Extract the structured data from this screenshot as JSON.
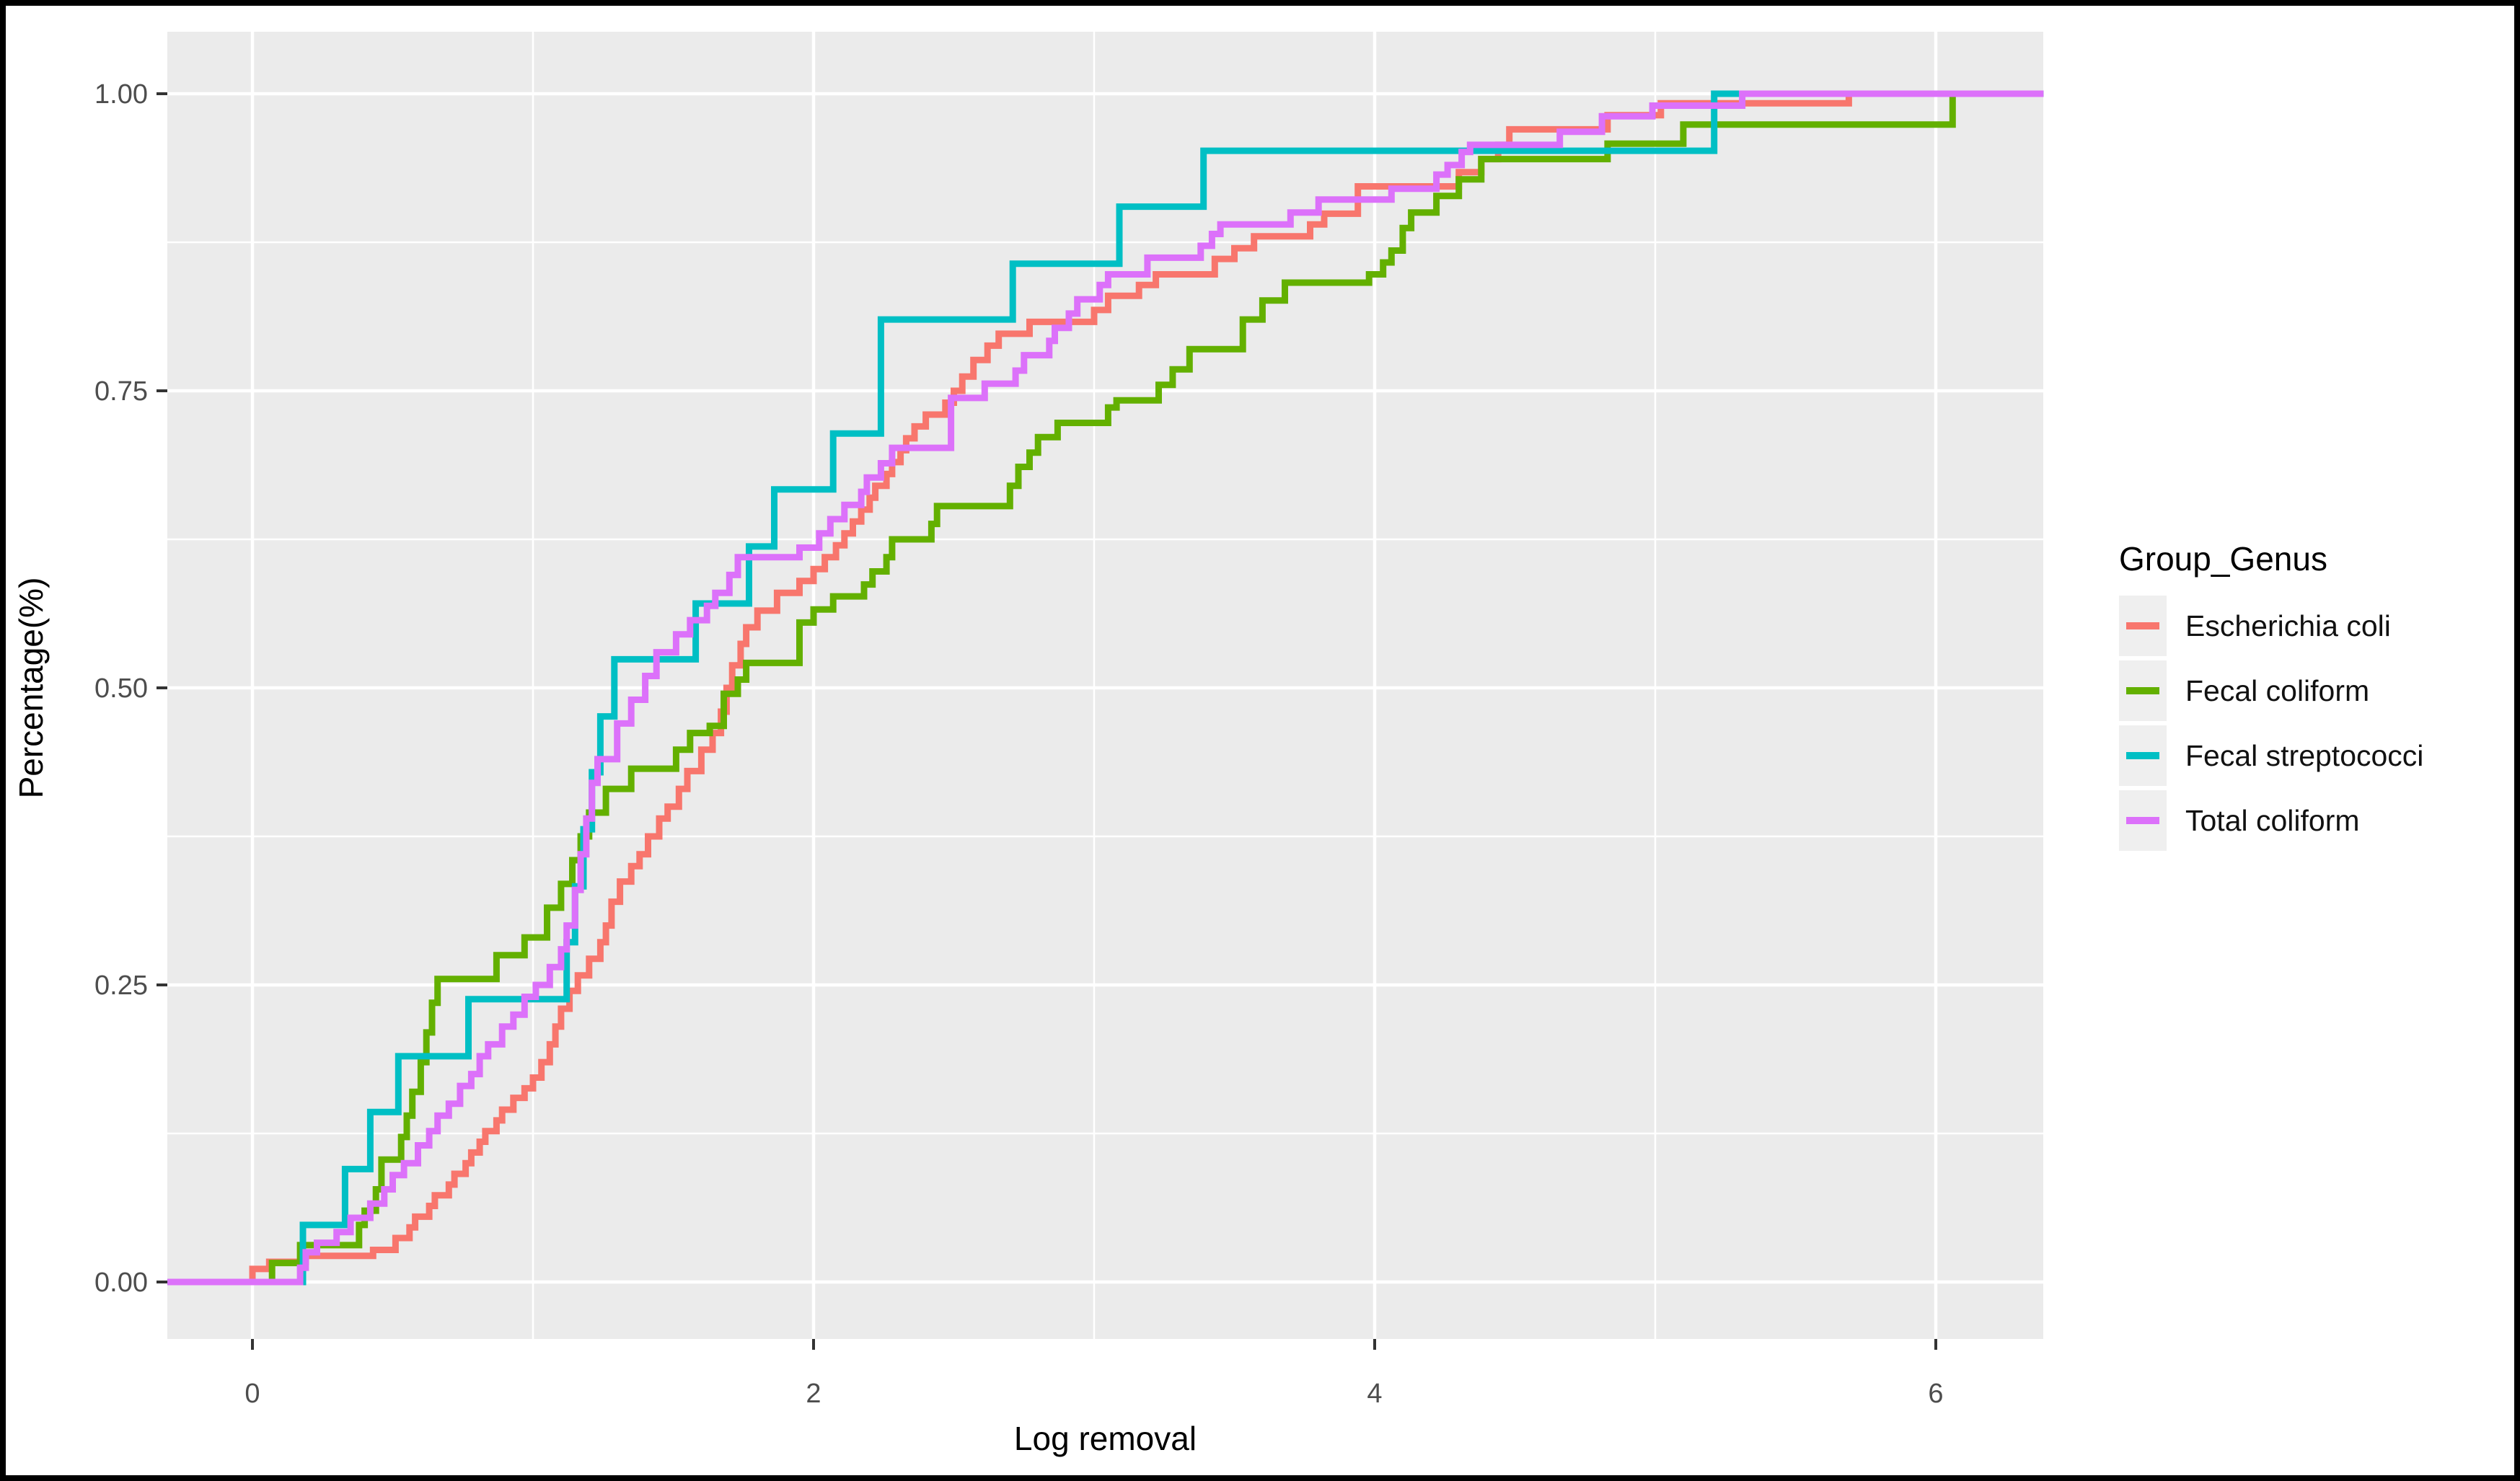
{
  "window": {
    "frame_color": "#000000",
    "background": "#ffffff"
  },
  "legend": {
    "title": "Group_Genus",
    "items": [
      {
        "label": "Escherichia coli",
        "color": "#F8766D"
      },
      {
        "label": "Fecal coliform",
        "color": "#63B000"
      },
      {
        "label": "Fecal streptococci",
        "color": "#00BFC4"
      },
      {
        "label": "Total coliform",
        "color": "#DC71FA"
      }
    ]
  },
  "chart_data": {
    "type": "line",
    "variant": "ecdf_step",
    "title": "",
    "xlabel": "Log removal",
    "ylabel": "Percentage(%)",
    "xlim": [
      -0.303,
      6.384
    ],
    "ylim": [
      -0.048,
      1.052
    ],
    "x_ticks": [
      0,
      2,
      4,
      6
    ],
    "x_tick_labels": [
      "0",
      "2",
      "4",
      "6"
    ],
    "x_minor_ticks": [
      1,
      3,
      5
    ],
    "y_ticks": [
      0,
      0.25,
      0.5,
      0.75,
      1.0
    ],
    "y_tick_labels": [
      "0.00",
      "0.25",
      "0.50",
      "0.75",
      "1.00"
    ],
    "y_minor_ticks": [
      0.125,
      0.375,
      0.625,
      0.875
    ],
    "grid": true,
    "grid_color": "#ffffff",
    "panel_background": "#EBEBEB",
    "tick_color": "#333333",
    "tick_label_color": "#4d4d4d",
    "legend_position": "right",
    "series": [
      {
        "name": "Escherichia coli",
        "color": "#F8766D",
        "points": [
          [
            0.0,
            0.011
          ],
          [
            0.06,
            0.017
          ],
          [
            0.19,
            0.022
          ],
          [
            0.43,
            0.027
          ],
          [
            0.51,
            0.037
          ],
          [
            0.56,
            0.046
          ],
          [
            0.58,
            0.055
          ],
          [
            0.63,
            0.064
          ],
          [
            0.65,
            0.073
          ],
          [
            0.7,
            0.082
          ],
          [
            0.72,
            0.091
          ],
          [
            0.76,
            0.1
          ],
          [
            0.78,
            0.109
          ],
          [
            0.81,
            0.118
          ],
          [
            0.83,
            0.127
          ],
          [
            0.87,
            0.136
          ],
          [
            0.89,
            0.145
          ],
          [
            0.93,
            0.155
          ],
          [
            0.97,
            0.163
          ],
          [
            1.0,
            0.172
          ],
          [
            1.03,
            0.185
          ],
          [
            1.06,
            0.2
          ],
          [
            1.08,
            0.215
          ],
          [
            1.1,
            0.23
          ],
          [
            1.13,
            0.245
          ],
          [
            1.16,
            0.258
          ],
          [
            1.2,
            0.272
          ],
          [
            1.24,
            0.286
          ],
          [
            1.26,
            0.3
          ],
          [
            1.28,
            0.32
          ],
          [
            1.31,
            0.337
          ],
          [
            1.35,
            0.35
          ],
          [
            1.38,
            0.36
          ],
          [
            1.41,
            0.375
          ],
          [
            1.45,
            0.39
          ],
          [
            1.48,
            0.4
          ],
          [
            1.52,
            0.415
          ],
          [
            1.55,
            0.43
          ],
          [
            1.6,
            0.448
          ],
          [
            1.64,
            0.462
          ],
          [
            1.67,
            0.48
          ],
          [
            1.69,
            0.5
          ],
          [
            1.71,
            0.519
          ],
          [
            1.74,
            0.537
          ],
          [
            1.76,
            0.551
          ],
          [
            1.8,
            0.565
          ],
          [
            1.87,
            0.58
          ],
          [
            1.95,
            0.59
          ],
          [
            2.0,
            0.6
          ],
          [
            2.04,
            0.61
          ],
          [
            2.08,
            0.62
          ],
          [
            2.11,
            0.63
          ],
          [
            2.14,
            0.64
          ],
          [
            2.17,
            0.65
          ],
          [
            2.2,
            0.66
          ],
          [
            2.22,
            0.67
          ],
          [
            2.26,
            0.68
          ],
          [
            2.28,
            0.69
          ],
          [
            2.31,
            0.7
          ],
          [
            2.33,
            0.71
          ],
          [
            2.36,
            0.72
          ],
          [
            2.4,
            0.73
          ],
          [
            2.47,
            0.74
          ],
          [
            2.5,
            0.75
          ],
          [
            2.53,
            0.762
          ],
          [
            2.57,
            0.776
          ],
          [
            2.62,
            0.788
          ],
          [
            2.66,
            0.798
          ],
          [
            2.77,
            0.808
          ],
          [
            3.0,
            0.818
          ],
          [
            3.05,
            0.83
          ],
          [
            3.16,
            0.839
          ],
          [
            3.22,
            0.848
          ],
          [
            3.43,
            0.861
          ],
          [
            3.5,
            0.87
          ],
          [
            3.57,
            0.88
          ],
          [
            3.77,
            0.89
          ],
          [
            3.82,
            0.899
          ],
          [
            3.94,
            0.922
          ],
          [
            4.3,
            0.934
          ],
          [
            4.38,
            0.945
          ],
          [
            4.44,
            0.957
          ],
          [
            4.48,
            0.97
          ],
          [
            4.83,
            0.982
          ],
          [
            5.02,
            0.992
          ],
          [
            5.69,
            1.0
          ]
        ]
      },
      {
        "name": "Fecal coliform",
        "color": "#63B000",
        "points": [
          [
            0.07,
            0.016
          ],
          [
            0.17,
            0.031
          ],
          [
            0.38,
            0.048
          ],
          [
            0.4,
            0.06
          ],
          [
            0.44,
            0.078
          ],
          [
            0.46,
            0.103
          ],
          [
            0.53,
            0.122
          ],
          [
            0.55,
            0.14
          ],
          [
            0.57,
            0.16
          ],
          [
            0.6,
            0.185
          ],
          [
            0.62,
            0.21
          ],
          [
            0.64,
            0.235
          ],
          [
            0.66,
            0.255
          ],
          [
            0.87,
            0.275
          ],
          [
            0.97,
            0.29
          ],
          [
            1.05,
            0.315
          ],
          [
            1.1,
            0.335
          ],
          [
            1.14,
            0.355
          ],
          [
            1.17,
            0.375
          ],
          [
            1.2,
            0.395
          ],
          [
            1.26,
            0.415
          ],
          [
            1.35,
            0.432
          ],
          [
            1.51,
            0.448
          ],
          [
            1.56,
            0.462
          ],
          [
            1.63,
            0.468
          ],
          [
            1.68,
            0.495
          ],
          [
            1.73,
            0.507
          ],
          [
            1.76,
            0.521
          ],
          [
            1.95,
            0.555
          ],
          [
            2.0,
            0.566
          ],
          [
            2.07,
            0.577
          ],
          [
            2.18,
            0.587
          ],
          [
            2.21,
            0.598
          ],
          [
            2.26,
            0.61
          ],
          [
            2.28,
            0.625
          ],
          [
            2.42,
            0.638
          ],
          [
            2.44,
            0.653
          ],
          [
            2.7,
            0.67
          ],
          [
            2.73,
            0.686
          ],
          [
            2.77,
            0.698
          ],
          [
            2.8,
            0.711
          ],
          [
            2.87,
            0.723
          ],
          [
            3.05,
            0.736
          ],
          [
            3.08,
            0.742
          ],
          [
            3.23,
            0.755
          ],
          [
            3.28,
            0.768
          ],
          [
            3.34,
            0.785
          ],
          [
            3.53,
            0.81
          ],
          [
            3.6,
            0.826
          ],
          [
            3.68,
            0.841
          ],
          [
            3.98,
            0.848
          ],
          [
            4.03,
            0.858
          ],
          [
            4.06,
            0.868
          ],
          [
            4.1,
            0.887
          ],
          [
            4.13,
            0.9
          ],
          [
            4.22,
            0.914
          ],
          [
            4.3,
            0.928
          ],
          [
            4.38,
            0.945
          ],
          [
            4.83,
            0.958
          ],
          [
            5.1,
            0.974
          ],
          [
            6.06,
            1.0
          ]
        ]
      },
      {
        "name": "Fecal streptococci",
        "color": "#00BFC4",
        "points": [
          [
            0.18,
            0.048
          ],
          [
            0.33,
            0.095
          ],
          [
            0.42,
            0.143
          ],
          [
            0.52,
            0.19
          ],
          [
            0.77,
            0.238
          ],
          [
            1.12,
            0.286
          ],
          [
            1.15,
            0.333
          ],
          [
            1.18,
            0.381
          ],
          [
            1.21,
            0.429
          ],
          [
            1.24,
            0.476
          ],
          [
            1.29,
            0.524
          ],
          [
            1.58,
            0.571
          ],
          [
            1.77,
            0.619
          ],
          [
            1.86,
            0.667
          ],
          [
            2.07,
            0.714
          ],
          [
            2.24,
            0.81
          ],
          [
            2.71,
            0.857
          ],
          [
            3.09,
            0.905
          ],
          [
            3.39,
            0.952
          ],
          [
            5.21,
            1.0
          ]
        ]
      },
      {
        "name": "Total coliform",
        "color": "#DC71FA",
        "points": [
          [
            0.17,
            0.012
          ],
          [
            0.19,
            0.025
          ],
          [
            0.23,
            0.033
          ],
          [
            0.3,
            0.042
          ],
          [
            0.35,
            0.054
          ],
          [
            0.42,
            0.066
          ],
          [
            0.47,
            0.078
          ],
          [
            0.5,
            0.09
          ],
          [
            0.54,
            0.1
          ],
          [
            0.59,
            0.115
          ],
          [
            0.63,
            0.127
          ],
          [
            0.66,
            0.14
          ],
          [
            0.7,
            0.15
          ],
          [
            0.74,
            0.165
          ],
          [
            0.78,
            0.175
          ],
          [
            0.81,
            0.19
          ],
          [
            0.84,
            0.2
          ],
          [
            0.89,
            0.215
          ],
          [
            0.93,
            0.225
          ],
          [
            0.97,
            0.24
          ],
          [
            1.01,
            0.25
          ],
          [
            1.06,
            0.265
          ],
          [
            1.1,
            0.28
          ],
          [
            1.12,
            0.3
          ],
          [
            1.15,
            0.33
          ],
          [
            1.17,
            0.36
          ],
          [
            1.19,
            0.39
          ],
          [
            1.21,
            0.42
          ],
          [
            1.23,
            0.44
          ],
          [
            1.3,
            0.47
          ],
          [
            1.35,
            0.49
          ],
          [
            1.4,
            0.51
          ],
          [
            1.44,
            0.53
          ],
          [
            1.51,
            0.545
          ],
          [
            1.56,
            0.557
          ],
          [
            1.62,
            0.569
          ],
          [
            1.65,
            0.58
          ],
          [
            1.7,
            0.595
          ],
          [
            1.73,
            0.61
          ],
          [
            1.95,
            0.618
          ],
          [
            2.02,
            0.63
          ],
          [
            2.06,
            0.642
          ],
          [
            2.11,
            0.654
          ],
          [
            2.17,
            0.665
          ],
          [
            2.19,
            0.677
          ],
          [
            2.24,
            0.689
          ],
          [
            2.28,
            0.702
          ],
          [
            2.49,
            0.744
          ],
          [
            2.61,
            0.756
          ],
          [
            2.72,
            0.767
          ],
          [
            2.75,
            0.78
          ],
          [
            2.84,
            0.792
          ],
          [
            2.86,
            0.803
          ],
          [
            2.91,
            0.815
          ],
          [
            2.94,
            0.827
          ],
          [
            3.02,
            0.839
          ],
          [
            3.05,
            0.848
          ],
          [
            3.19,
            0.862
          ],
          [
            3.38,
            0.872
          ],
          [
            3.42,
            0.882
          ],
          [
            3.45,
            0.89
          ],
          [
            3.7,
            0.9
          ],
          [
            3.8,
            0.911
          ],
          [
            4.06,
            0.92
          ],
          [
            4.22,
            0.932
          ],
          [
            4.26,
            0.94
          ],
          [
            4.31,
            0.951
          ],
          [
            4.34,
            0.957
          ],
          [
            4.66,
            0.968
          ],
          [
            4.81,
            0.981
          ],
          [
            4.99,
            0.99
          ],
          [
            5.31,
            1.0
          ]
        ]
      }
    ]
  }
}
